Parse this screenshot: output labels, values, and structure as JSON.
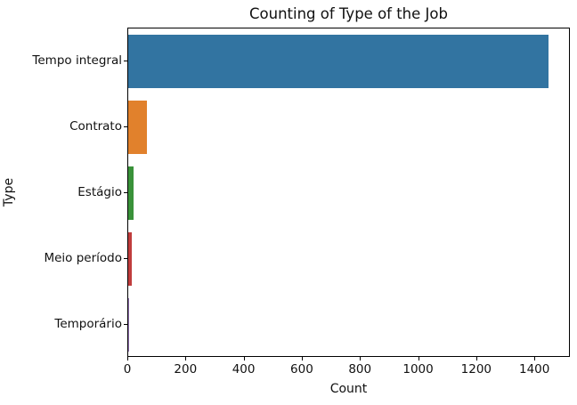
{
  "figure": {
    "background": "#ffffff",
    "text_color": "#111111",
    "spine_color": "#000000"
  },
  "chart_data": {
    "type": "bar",
    "orientation": "horizontal",
    "title": "Counting of Type of the Job",
    "xlabel": "Count",
    "ylabel": "Type",
    "categories": [
      "Tempo integral",
      "Contrato",
      "Estágio",
      "Meio período",
      "Temporário"
    ],
    "values": [
      1445,
      65,
      19,
      11,
      2
    ],
    "bar_colors": [
      "#3274a1",
      "#e1812c",
      "#3a923a",
      "#c03d3d",
      "#9372b2"
    ],
    "xlim": [
      0,
      1522
    ],
    "xticks": [
      0,
      200,
      400,
      600,
      800,
      1000,
      1200,
      1400
    ],
    "bar_thickness_fraction": 0.8,
    "grid": false,
    "legend": "none"
  }
}
